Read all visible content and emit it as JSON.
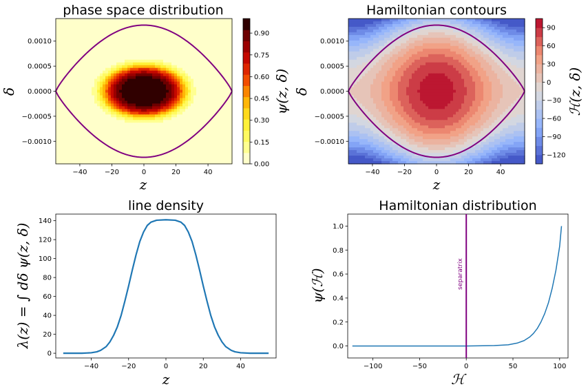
{
  "chart_data": [
    {
      "type": "heatmap",
      "title": "phase space distribution",
      "xlabel": "z",
      "ylabel": "δ",
      "xlim": [
        -55,
        55
      ],
      "ylim": [
        -0.00145,
        0.00145
      ],
      "xticks": [
        -40,
        -20,
        0,
        20,
        40
      ],
      "xtick_labels": [
        "−40",
        "−20",
        "0",
        "20",
        "40"
      ],
      "yticks": [
        -0.001,
        -0.0005,
        0,
        0.0005,
        0.001
      ],
      "ytick_labels": [
        "−0.0010",
        "−0.0005",
        "0.0000",
        "0.0005",
        "0.0010"
      ],
      "colormap": "hot_r",
      "colorbar_label": "ψ(z, δ)",
      "colorbar_ticks": [
        0,
        0.15,
        0.3,
        0.45,
        0.6,
        0.75,
        0.9
      ],
      "colorbar_tick_labels": [
        "0.00",
        "0.15",
        "0.30",
        "0.45",
        "0.60",
        "0.75",
        "0.90"
      ],
      "colorbar_range": [
        0,
        1
      ],
      "levels": 13,
      "separatrix_color": "#800080",
      "separatrix_half_height": 0.00132
    },
    {
      "type": "heatmap",
      "title": "Hamiltonian contours",
      "xlabel": "z",
      "ylabel": "δ",
      "xlim": [
        -55,
        55
      ],
      "ylim": [
        -0.00145,
        0.00145
      ],
      "xticks": [
        -40,
        -20,
        0,
        20,
        40
      ],
      "xtick_labels": [
        "−40",
        "−20",
        "0",
        "20",
        "40"
      ],
      "yticks": [
        -0.001,
        -0.0005,
        0,
        0.0005,
        0.001
      ],
      "ytick_labels": [
        "−0.0010",
        "−0.0005",
        "0.0000",
        "0.0005",
        "0.0010"
      ],
      "colormap": "coolwarm",
      "colorbar_label": "ℋ(z, δ)",
      "colorbar_ticks": [
        -120,
        -90,
        -60,
        -30,
        0,
        30,
        60,
        90
      ],
      "colorbar_tick_labels": [
        "−120",
        "−90",
        "−60",
        "−30",
        "0",
        "30",
        "60",
        "90"
      ],
      "colorbar_range": [
        -135,
        105
      ],
      "levels": 16,
      "separatrix_color": "#800080",
      "separatrix_half_height": 0.00132
    },
    {
      "type": "line",
      "title": "line density",
      "xlabel": "z",
      "ylabel": "λ(z) = ∫ dδ ψ(z, δ)",
      "xlim": [
        -59,
        59
      ],
      "ylim": [
        -5,
        147
      ],
      "xticks": [
        -40,
        -20,
        0,
        20,
        40
      ],
      "xtick_labels": [
        "−40",
        "−20",
        "0",
        "20",
        "40"
      ],
      "yticks": [
        0,
        20,
        40,
        60,
        80,
        100,
        120,
        140
      ],
      "ytick_labels": [
        "0",
        "20",
        "40",
        "60",
        "80",
        "100",
        "120",
        "140"
      ],
      "series": [
        {
          "color": "#1f77b4",
          "x": [
            -55,
            -50,
            -45,
            -40,
            -37,
            -35,
            -32,
            -30,
            -28,
            -26,
            -24,
            -22,
            -20,
            -18,
            -16,
            -14,
            -12,
            -10,
            -8,
            -5,
            0,
            5,
            8,
            10,
            12,
            14,
            16,
            18,
            20,
            22,
            24,
            26,
            28,
            30,
            32,
            35,
            37,
            40,
            45,
            50,
            55
          ],
          "y": [
            0,
            0,
            0,
            0.5,
            1.5,
            3,
            7,
            12,
            19,
            28,
            40,
            55,
            71,
            88,
            104,
            118,
            128,
            135,
            138.5,
            140.5,
            141,
            140.5,
            138.5,
            135,
            128,
            118,
            104,
            88,
            71,
            55,
            40,
            28,
            19,
            12,
            7,
            3,
            1.5,
            0.5,
            0,
            0,
            0
          ]
        }
      ]
    },
    {
      "type": "line",
      "title": "Hamiltonian distribution",
      "xlabel": "ℋ",
      "ylabel": "ψ(ℋ)",
      "xlim": [
        -127,
        109
      ],
      "ylim": [
        -0.1,
        1.1
      ],
      "xticks": [
        -100,
        -50,
        0,
        50,
        100
      ],
      "xtick_labels": [
        "−100",
        "−50",
        "0",
        "50",
        "100"
      ],
      "yticks": [
        0,
        0.2,
        0.4,
        0.6,
        0.8,
        1.0
      ],
      "ytick_labels": [
        "0.0",
        "0.2",
        "0.4",
        "0.6",
        "0.8",
        "1.0"
      ],
      "series": [
        {
          "color": "#1f77b4",
          "x": [
            -122,
            -100,
            -50,
            0,
            30,
            45,
            55,
            62,
            68,
            72,
            76,
            80,
            84,
            88,
            92,
            96,
            100,
            102
          ],
          "y": [
            0,
            0,
            0,
            0,
            0.003,
            0.01,
            0.025,
            0.045,
            0.075,
            0.105,
            0.145,
            0.2,
            0.27,
            0.36,
            0.48,
            0.63,
            0.83,
            1.0
          ]
        }
      ],
      "vline": {
        "x": 0,
        "color": "#800080",
        "label": "separatrix"
      }
    }
  ]
}
